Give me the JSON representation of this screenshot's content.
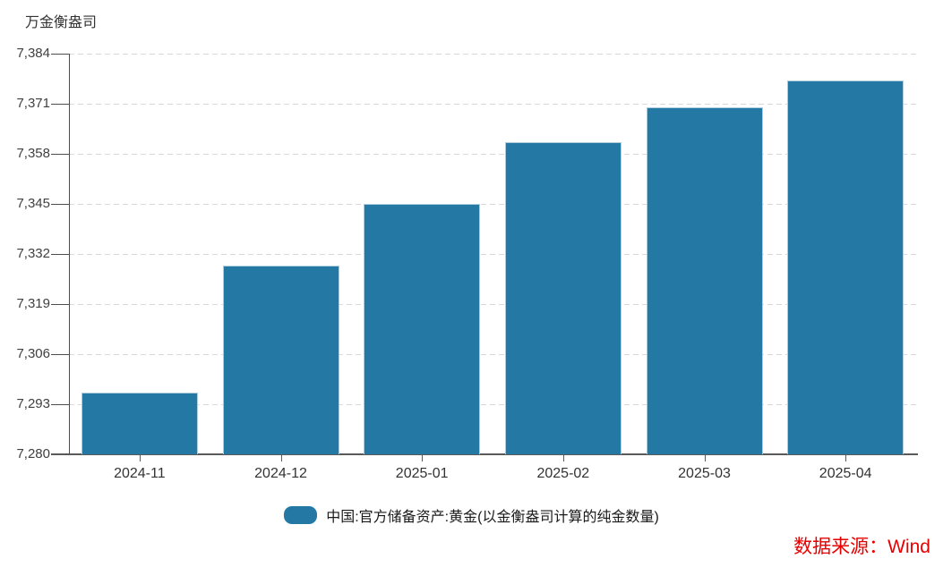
{
  "unit_label": "万金衡盎司",
  "legend": {
    "label": "中国:官方储备资产:黄金(以金衡盎司计算的纯金数量)"
  },
  "source": {
    "label": "数据来源：Wind"
  },
  "colors": {
    "bar": "#2478a4",
    "bar_edge": "#adccde",
    "grid": "#d9d9d9",
    "axis": "#595959",
    "y_axis": "#4d4d4d",
    "text": "#333333",
    "source_text": "#e60000"
  },
  "chart_data": {
    "type": "bar",
    "title": "",
    "xlabel": "",
    "ylabel": "万金衡盎司",
    "categories": [
      "2024-11",
      "2024-12",
      "2025-01",
      "2025-02",
      "2025-03",
      "2025-04"
    ],
    "values": [
      7296,
      7329,
      7345,
      7361,
      7370,
      7377
    ],
    "series_name": "中国:官方储备资产:黄金(以金衡盎司计算的纯金数量)",
    "ylim": [
      7280,
      7384
    ],
    "yticks": [
      7280,
      7293,
      7306,
      7319,
      7332,
      7345,
      7358,
      7371,
      7384
    ],
    "grid": "horizontal-dashed",
    "legend_position": "bottom-center",
    "annotation": "数据来源：Wind"
  }
}
